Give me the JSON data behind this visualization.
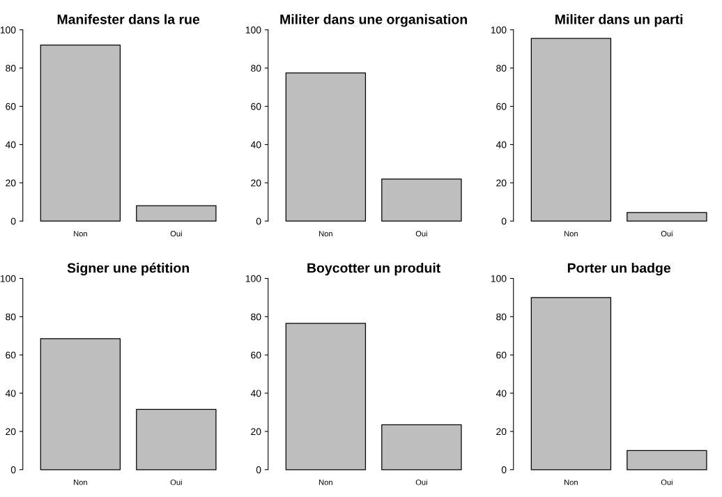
{
  "chart_data": [
    {
      "type": "bar",
      "title": "Manifester dans la rue",
      "categories": [
        "Non",
        "Oui"
      ],
      "values": [
        92,
        8
      ],
      "color": "#bebebe",
      "ylim": [
        0,
        100
      ],
      "yticks": [
        0,
        20,
        40,
        60,
        80,
        100
      ],
      "grid": false
    },
    {
      "type": "bar",
      "title": "Militer dans une organisation",
      "categories": [
        "Non",
        "Oui"
      ],
      "values": [
        77.5,
        22
      ],
      "color": "#bebebe",
      "ylim": [
        0,
        100
      ],
      "yticks": [
        0,
        20,
        40,
        60,
        80,
        100
      ],
      "grid": false
    },
    {
      "type": "bar",
      "title": "Militer dans un parti",
      "categories": [
        "Non",
        "Oui"
      ],
      "values": [
        95.5,
        4.5
      ],
      "color": "#bebebe",
      "ylim": [
        0,
        100
      ],
      "yticks": [
        0,
        20,
        40,
        60,
        80,
        100
      ],
      "grid": false
    },
    {
      "type": "bar",
      "title": "Signer une pétition",
      "categories": [
        "Non",
        "Oui"
      ],
      "values": [
        68.5,
        31.5
      ],
      "color": "#bebebe",
      "ylim": [
        0,
        100
      ],
      "yticks": [
        0,
        20,
        40,
        60,
        80,
        100
      ],
      "grid": false
    },
    {
      "type": "bar",
      "title": "Boycotter un produit",
      "categories": [
        "Non",
        "Oui"
      ],
      "values": [
        76.5,
        23.5
      ],
      "color": "#bebebe",
      "ylim": [
        0,
        100
      ],
      "yticks": [
        0,
        20,
        40,
        60,
        80,
        100
      ],
      "grid": false
    },
    {
      "type": "bar",
      "title": "Porter un badge",
      "categories": [
        "Non",
        "Oui"
      ],
      "values": [
        90,
        10
      ],
      "color": "#bebebe",
      "ylim": [
        0,
        100
      ],
      "yticks": [
        0,
        20,
        40,
        60,
        80,
        100
      ],
      "grid": false
    }
  ]
}
